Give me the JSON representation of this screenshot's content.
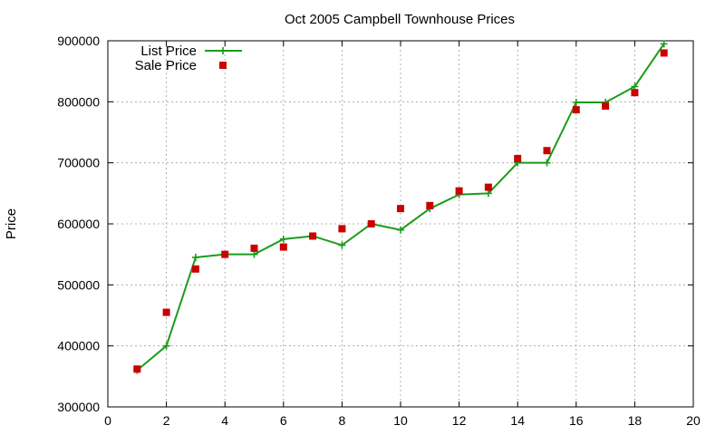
{
  "chart_data": {
    "type": "line",
    "title": "Oct 2005 Campbell Townhouse Prices",
    "xlabel": "",
    "ylabel": "Price",
    "xlim": [
      0,
      20
    ],
    "ylim": [
      300000,
      900000
    ],
    "xticks": [
      "0",
      "2",
      "4",
      "6",
      "8",
      "10",
      "12",
      "14",
      "16",
      "18",
      "20"
    ],
    "yticks": [
      "300000",
      "400000",
      "500000",
      "600000",
      "700000",
      "800000",
      "900000"
    ],
    "grid": true,
    "legend_position": "top-left",
    "x": [
      1,
      2,
      3,
      4,
      5,
      6,
      7,
      8,
      9,
      10,
      11,
      12,
      13,
      14,
      15,
      16,
      17,
      18,
      19
    ],
    "series": [
      {
        "name": "List Price",
        "style": "line-with-plus-markers",
        "color": "#1a9c1a",
        "values": [
          360000,
          400000,
          545000,
          550000,
          550000,
          575000,
          580000,
          565000,
          600000,
          590000,
          625000,
          648000,
          650000,
          700000,
          700000,
          799000,
          799000,
          825000,
          895000
        ]
      },
      {
        "name": "Sale Price",
        "style": "square-markers",
        "color": "#cc0000",
        "values": [
          362000,
          455000,
          526000,
          550000,
          560000,
          562000,
          580000,
          592000,
          600000,
          625000,
          630000,
          654000,
          660000,
          707000,
          720000,
          787000,
          793000,
          815000,
          880000
        ]
      }
    ]
  }
}
